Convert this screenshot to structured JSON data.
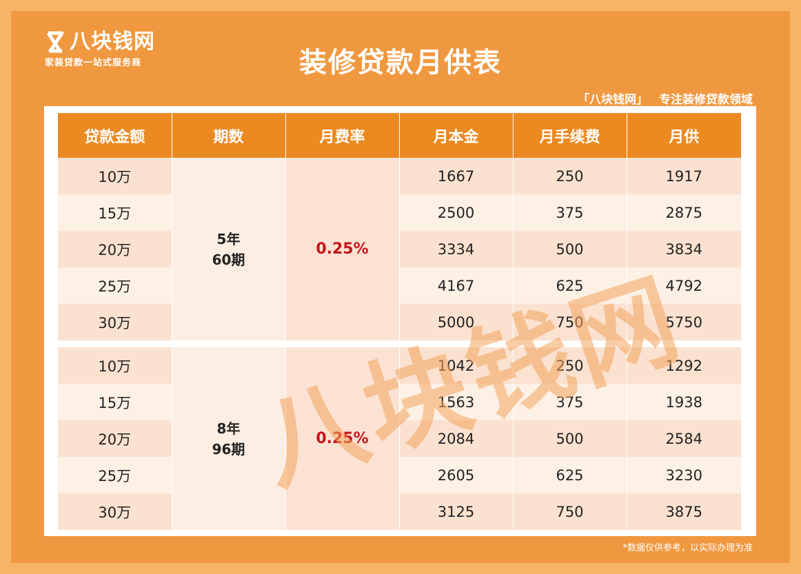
{
  "brand": {
    "name": "八块钱网",
    "slogan": "家装贷款一站式服务商"
  },
  "title": "装修贷款月供表",
  "tagline": {
    "brand": "「八块钱网」",
    "text": "专注装修贷款领域"
  },
  "table": {
    "headers": [
      "贷款金额",
      "期数",
      "月费率",
      "月本金",
      "月手续费",
      "月供"
    ],
    "groups": [
      {
        "period_line1": "5年",
        "period_line2": "60期",
        "rate": "0.25%",
        "rows": [
          {
            "amount": "10万",
            "principal": "1667",
            "fee": "250",
            "payment": "1917"
          },
          {
            "amount": "15万",
            "principal": "2500",
            "fee": "375",
            "payment": "2875"
          },
          {
            "amount": "20万",
            "principal": "3334",
            "fee": "500",
            "payment": "3834"
          },
          {
            "amount": "25万",
            "principal": "4167",
            "fee": "625",
            "payment": "4792"
          },
          {
            "amount": "30万",
            "principal": "5000",
            "fee": "750",
            "payment": "5750"
          }
        ]
      },
      {
        "period_line1": "8年",
        "period_line2": "96期",
        "rate": "0.25%",
        "rows": [
          {
            "amount": "10万",
            "principal": "1042",
            "fee": "250",
            "payment": "1292"
          },
          {
            "amount": "15万",
            "principal": "1563",
            "fee": "375",
            "payment": "1938"
          },
          {
            "amount": "20万",
            "principal": "2084",
            "fee": "500",
            "payment": "2584"
          },
          {
            "amount": "25万",
            "principal": "2605",
            "fee": "625",
            "payment": "3230"
          },
          {
            "amount": "30万",
            "principal": "3125",
            "fee": "750",
            "payment": "3875"
          }
        ]
      }
    ]
  },
  "watermark": "八块钱网",
  "footnote": "*数据仅供参考，以实际办理为准",
  "colors": {
    "background": "#f0983f",
    "header": "#ec8a22",
    "rate": "#c4151c"
  },
  "icons": {
    "logo": "infinity-8-icon"
  }
}
